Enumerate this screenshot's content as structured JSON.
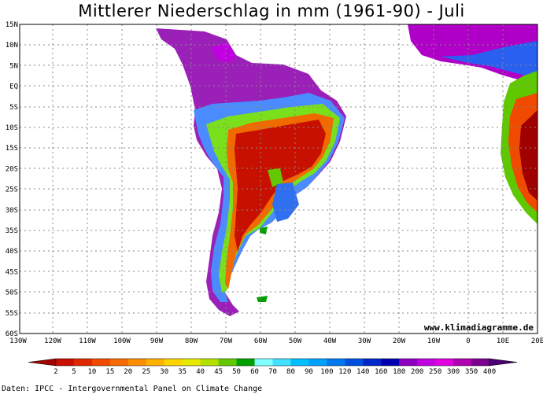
{
  "title": "Mittlerer Niederschlag in mm (1961-90) - Juli",
  "watermark": "www.klimadiagramme.de",
  "source": "Daten: IPCC - Intergovernmental Panel on Climate Change",
  "lat_labels": [
    "15N",
    "10N",
    "5N",
    "EQ",
    "5S",
    "10S",
    "15S",
    "20S",
    "25S",
    "30S",
    "35S",
    "40S",
    "45S",
    "50S",
    "55S",
    "60S"
  ],
  "lon_labels": [
    "130W",
    "120W",
    "110W",
    "100W",
    "90W",
    "80W",
    "70W",
    "60W",
    "50W",
    "40W",
    "30W",
    "20W",
    "10W",
    "0",
    "10E",
    "20E"
  ],
  "legend": {
    "labels": [
      "2",
      "5",
      "10",
      "15",
      "20",
      "25",
      "30",
      "35",
      "40",
      "45",
      "50",
      "60",
      "70",
      "80",
      "90",
      "100",
      "120",
      "140",
      "160",
      "180",
      "200",
      "250",
      "300",
      "350",
      "400"
    ],
    "colors": [
      "#a00000",
      "#c81000",
      "#e02800",
      "#f04a00",
      "#f86a00",
      "#fc8c00",
      "#fcb000",
      "#fcd400",
      "#e8e800",
      "#b4e000",
      "#64c800",
      "#00a000",
      "#80ffff",
      "#40e0ff",
      "#00c0ff",
      "#00a0ff",
      "#0078f0",
      "#0050e0",
      "#0028c8",
      "#0000b0",
      "#9000c0",
      "#c000e0",
      "#e000e0",
      "#b000b0",
      "#7a0090",
      "#4a0070"
    ]
  }
}
